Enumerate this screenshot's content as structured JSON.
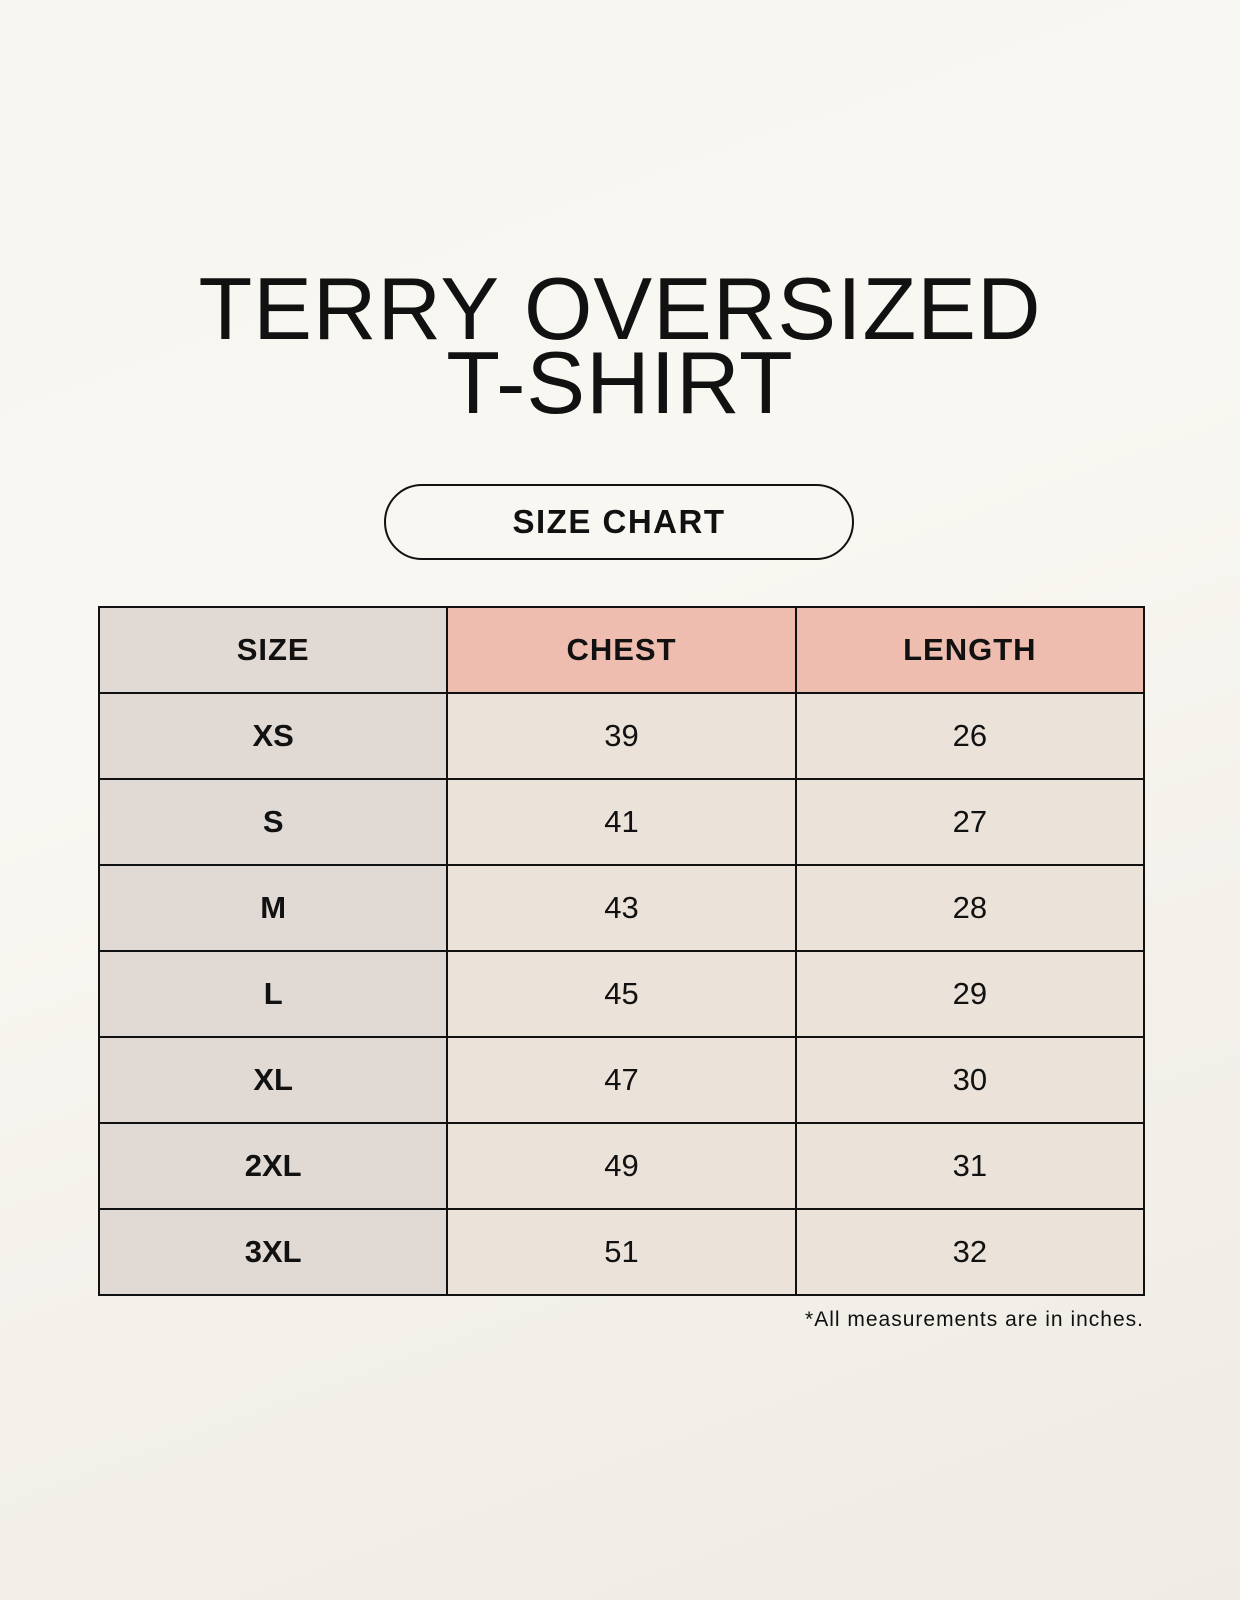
{
  "title_line1": "TERRY OVERSIZED",
  "title_line2": "T-SHIRT",
  "subtitle": "SIZE CHART",
  "table": {
    "headers": [
      "SIZE",
      "CHEST",
      "LENGTH"
    ],
    "rows": [
      [
        "XS",
        "39",
        "26"
      ],
      [
        "S",
        "41",
        "27"
      ],
      [
        "M",
        "43",
        "28"
      ],
      [
        "L",
        "45",
        "29"
      ],
      [
        "XL",
        "47",
        "30"
      ],
      [
        "2XL",
        "49",
        "31"
      ],
      [
        "3XL",
        "51",
        "32"
      ]
    ]
  },
  "footnote": "*All measurements are in inches.",
  "colors": {
    "size_column": "#e0d9d4",
    "header_accent": "#eebdaf",
    "cell": "#ebe3d9"
  }
}
